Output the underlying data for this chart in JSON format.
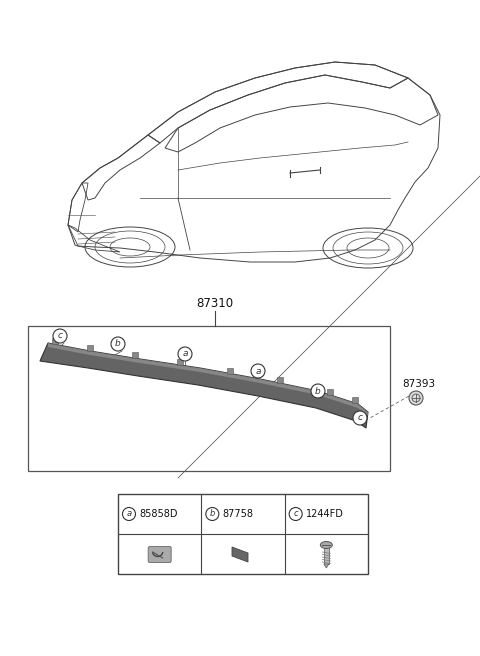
{
  "bg_color": "#ffffff",
  "part_number_main": "87310",
  "part_number_screw": "87393",
  "legend": [
    {
      "label": "a",
      "part": "85858D",
      "type": "clip"
    },
    {
      "label": "b",
      "part": "87758",
      "type": "pad"
    },
    {
      "label": "c",
      "part": "1244FD",
      "type": "screw"
    }
  ],
  "line_color": "#444444",
  "moulding_dark": "#555555",
  "moulding_light": "#999999"
}
